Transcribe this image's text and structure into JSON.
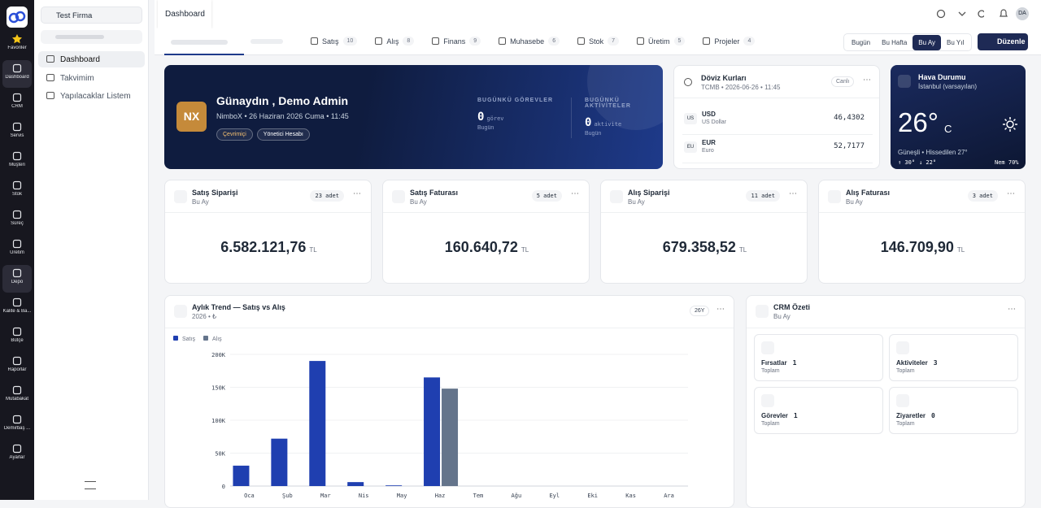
{
  "sidebar": {
    "items": [
      "Favoriler",
      "Dashboard",
      "CRM",
      "Servis",
      "Müşteri",
      "Stok",
      "Süreç",
      "Üretim",
      "Depo",
      "Kalite & Ba...",
      "Bütçe",
      "Raporlar",
      "Mutabakat",
      "Demirbaş ...",
      "Ayarlar"
    ]
  },
  "company": "Test Firma",
  "menu": [
    "Dashboard",
    "Takvimim",
    "Yapılacaklar Listem"
  ],
  "topbar": {
    "tab": "Dashboard",
    "avatar": "DA"
  },
  "tabs": [
    {
      "label": "Satış",
      "count": "10"
    },
    {
      "label": "Alış",
      "count": "8"
    },
    {
      "label": "Finans",
      "count": "9"
    },
    {
      "label": "Muhasebe",
      "count": "6"
    },
    {
      "label": "Stok",
      "count": "7"
    },
    {
      "label": "Üretim",
      "count": "5"
    },
    {
      "label": "Projeler",
      "count": "4"
    }
  ],
  "periods": [
    "Bugün",
    "Bu Hafta",
    "Bu Ay",
    "Bu Yıl"
  ],
  "active_period": 2,
  "edit_button": "Düzenle",
  "hero": {
    "initials": "NX",
    "title": "Günaydın , Demo Admin",
    "subtitle": "NimboX • 26 Haziran 2026 Cuma • 11:45",
    "badges": [
      "Çevrimiçi",
      "Yönetici Hesabı"
    ],
    "stats": [
      {
        "label": "BUGÜNKÜ GÖREVLER",
        "value": "0",
        "unit": "görev",
        "note": "Bugün"
      },
      {
        "label": "BUGÜNKÜ AKTİVİTELER",
        "value": "0",
        "unit": "aktivite",
        "note": "Bugün"
      }
    ]
  },
  "fx": {
    "title": "Döviz Kurları",
    "subtitle": "TCMB • 2026-06-26 • 11:45",
    "badge": "Canlı",
    "rows": [
      {
        "flag": "US",
        "code": "USD",
        "name": "US Dollar",
        "rate": "46,4302"
      },
      {
        "flag": "EU",
        "code": "EUR",
        "name": "Euro",
        "rate": "52,7177"
      }
    ]
  },
  "weather": {
    "title": "Hava Durumu",
    "city": "İstanbul (varsayılan)",
    "temp": "26°",
    "unit": "C",
    "desc": "Güneşli • Hissedilen 27°",
    "high": "↑ 30°",
    "low": "↓ 22°",
    "humidity": "Nem 70%"
  },
  "kpis": [
    {
      "title": "Satış Siparişi",
      "period": "Bu Ay",
      "count": "23 adet",
      "value": "6.582.121,76",
      "currency": "TL"
    },
    {
      "title": "Satış Faturası",
      "period": "Bu Ay",
      "count": "5 adet",
      "value": "160.640,72",
      "currency": "TL"
    },
    {
      "title": "Alış Siparişi",
      "period": "Bu Ay",
      "count": "11 adet",
      "value": "679.358,52",
      "currency": "TL"
    },
    {
      "title": "Alış Faturası",
      "period": "Bu Ay",
      "count": "3 adet",
      "value": "146.709,90",
      "currency": "TL"
    }
  ],
  "chart_data": {
    "type": "bar",
    "title": "Aylık Trend — Satış vs Alış",
    "subtitle": "2026 • ₺",
    "badge": "26Y",
    "categories": [
      "Oca",
      "Şub",
      "Mar",
      "Nis",
      "May",
      "Haz",
      "Tem",
      "Ağu",
      "Eyl",
      "Eki",
      "Kas",
      "Ara"
    ],
    "series": [
      {
        "name": "Satış",
        "color": "#1f3fb0",
        "values": [
          31000,
          72000,
          190000,
          6000,
          1000,
          165000,
          0,
          0,
          0,
          0,
          0,
          0
        ]
      },
      {
        "name": "Alış",
        "color": "#64748b",
        "values": [
          0,
          0,
          0,
          0,
          0,
          148000,
          0,
          0,
          0,
          0,
          0,
          0
        ]
      }
    ],
    "ylim": [
      0,
      200000
    ],
    "yticks": [
      0,
      {
        "value": 50000,
        "label": "50K"
      },
      {
        "value": 100000,
        "label": "100K"
      },
      {
        "value": 150000,
        "label": "150K"
      },
      {
        "value": 200000,
        "label": "200K"
      }
    ],
    "grid": true
  },
  "crm": {
    "title": "CRM Özeti",
    "period": "Bu Ay",
    "items": [
      {
        "label": "Fırsatlar",
        "value": "1",
        "note": "Toplam"
      },
      {
        "label": "Aktiviteler",
        "value": "3",
        "note": "Toplam"
      },
      {
        "label": "Görevler",
        "value": "1",
        "note": "Toplam"
      },
      {
        "label": "Ziyaretler",
        "value": "0",
        "note": "Toplam"
      }
    ]
  }
}
